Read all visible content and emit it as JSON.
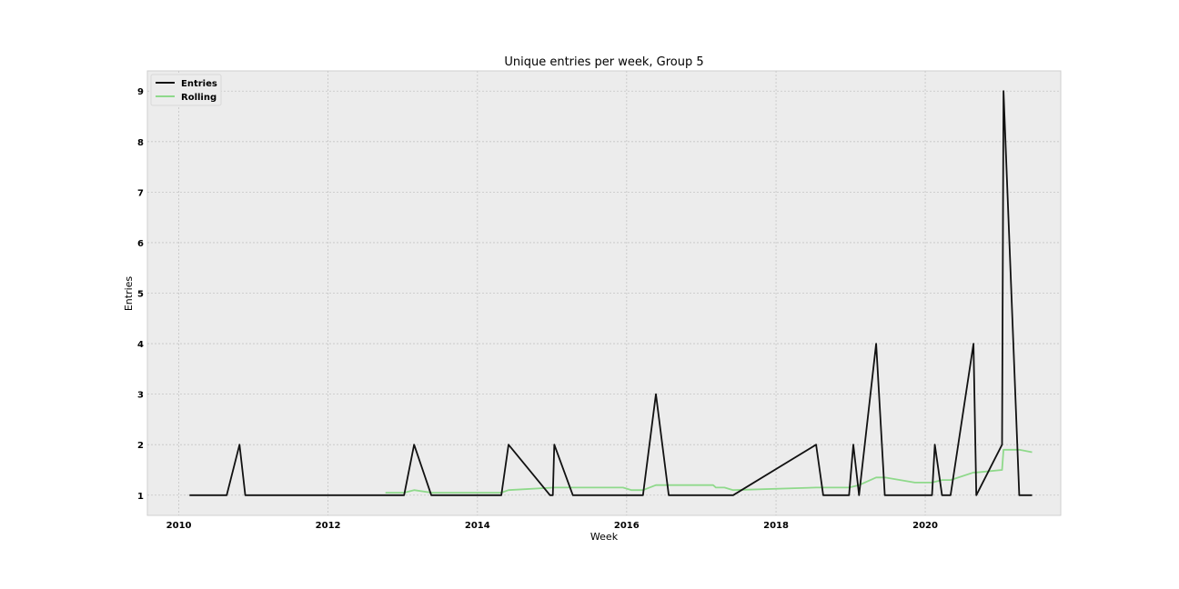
{
  "chart_data": {
    "type": "line",
    "title": "Unique entries per week, Group 5",
    "xlabel": "Week",
    "ylabel": "Entries",
    "xlim": [
      "2009-07-31",
      "2021-10-25"
    ],
    "ylim": [
      0.6,
      9.4
    ],
    "x_ticks": [
      "2010",
      "2012",
      "2014",
      "2016",
      "2018",
      "2020"
    ],
    "y_ticks": [
      "1",
      "2",
      "3",
      "4",
      "5",
      "6",
      "7",
      "8",
      "9"
    ],
    "grid": true,
    "legend": {
      "position": "top-left",
      "entries": [
        "Entries",
        "Rolling"
      ]
    },
    "series": [
      {
        "name": "Entries",
        "color": "#111111",
        "points": [
          [
            "2010-02-22",
            1
          ],
          [
            "2010-08-23",
            1
          ],
          [
            "2010-10-25",
            2
          ],
          [
            "2010-11-22",
            1
          ],
          [
            "2013-01-07",
            1
          ],
          [
            "2013-02-25",
            2
          ],
          [
            "2013-05-20",
            1
          ],
          [
            "2014-04-28",
            1
          ],
          [
            "2014-06-02",
            2
          ],
          [
            "2014-12-22",
            1
          ],
          [
            "2015-01-05",
            1
          ],
          [
            "2015-01-12",
            2
          ],
          [
            "2015-04-13",
            1
          ],
          [
            "2016-03-21",
            1
          ],
          [
            "2016-05-23",
            3
          ],
          [
            "2016-07-25",
            1
          ],
          [
            "2017-06-05",
            1
          ],
          [
            "2018-07-16",
            2
          ],
          [
            "2018-08-20",
            1
          ],
          [
            "2018-12-24",
            1
          ],
          [
            "2019-01-14",
            2
          ],
          [
            "2019-02-11",
            1
          ],
          [
            "2019-05-06",
            4
          ],
          [
            "2019-06-17",
            1
          ],
          [
            "2020-02-03",
            1
          ],
          [
            "2020-02-17",
            2
          ],
          [
            "2020-03-23",
            1
          ],
          [
            "2020-05-04",
            1
          ],
          [
            "2020-08-24",
            4
          ],
          [
            "2020-09-07",
            1
          ],
          [
            "2021-01-11",
            2
          ],
          [
            "2021-01-18",
            9
          ],
          [
            "2021-04-05",
            1
          ],
          [
            "2021-06-07",
            1
          ]
        ]
      },
      {
        "name": "Rolling",
        "color": "#8fd98b",
        "points": [
          [
            "2012-10-08",
            1.05
          ],
          [
            "2013-01-07",
            1.05
          ],
          [
            "2013-02-25",
            1.1
          ],
          [
            "2013-05-20",
            1.05
          ],
          [
            "2014-04-28",
            1.05
          ],
          [
            "2014-06-02",
            1.1
          ],
          [
            "2015-01-12",
            1.15
          ],
          [
            "2015-12-14",
            1.15
          ],
          [
            "2016-01-25",
            1.1
          ],
          [
            "2016-03-21",
            1.1
          ],
          [
            "2016-05-23",
            1.2
          ],
          [
            "2017-02-27",
            1.2
          ],
          [
            "2017-03-13",
            1.15
          ],
          [
            "2017-04-24",
            1.15
          ],
          [
            "2017-06-05",
            1.1
          ],
          [
            "2018-07-16",
            1.15
          ],
          [
            "2018-12-24",
            1.15
          ],
          [
            "2019-02-11",
            1.2
          ],
          [
            "2019-05-06",
            1.35
          ],
          [
            "2019-06-17",
            1.35
          ],
          [
            "2019-11-11",
            1.25
          ],
          [
            "2020-02-03",
            1.25
          ],
          [
            "2020-03-23",
            1.3
          ],
          [
            "2020-05-04",
            1.3
          ],
          [
            "2020-08-24",
            1.45
          ],
          [
            "2020-09-07",
            1.45
          ],
          [
            "2021-01-11",
            1.5
          ],
          [
            "2021-01-18",
            1.9
          ],
          [
            "2021-04-05",
            1.9
          ],
          [
            "2021-06-07",
            1.85
          ]
        ]
      }
    ]
  }
}
